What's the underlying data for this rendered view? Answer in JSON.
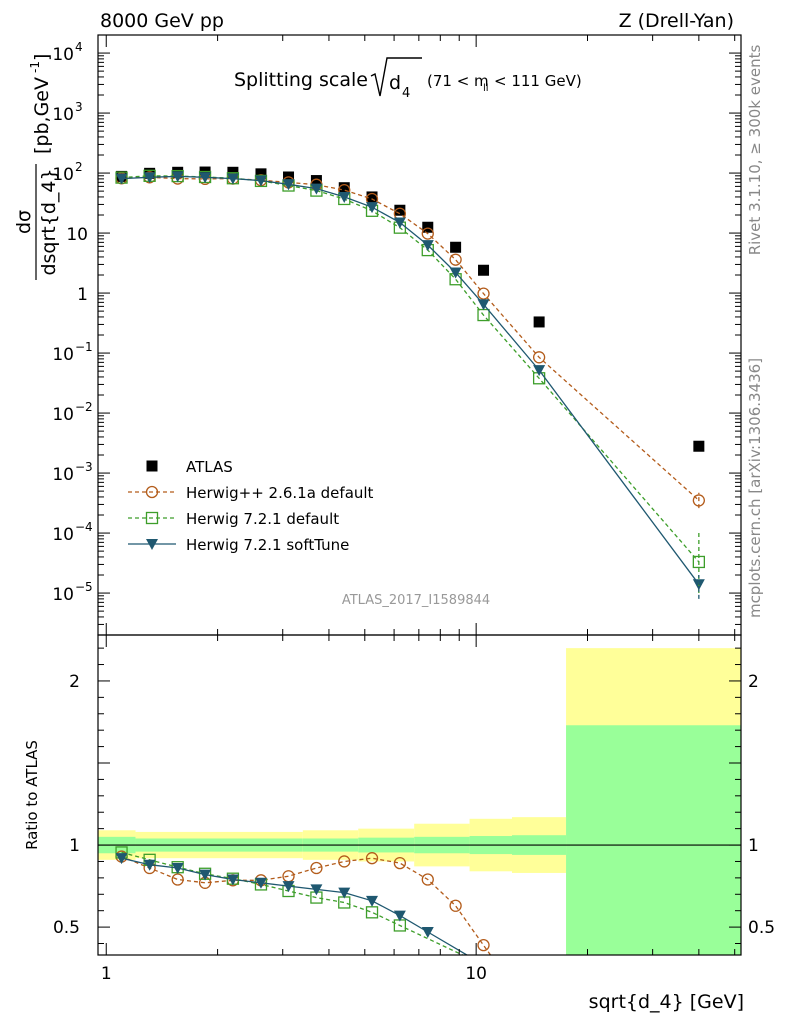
{
  "header": {
    "left": "8000 GeV pp",
    "right": "Z (Drell-Yan)"
  },
  "side_labels": {
    "rivet": "Rivet 3.1.10, ≥ 300k events",
    "mcplots": "mcplots.cern.ch [arXiv:1306.3436]"
  },
  "chart_data": [
    {
      "type": "scatter",
      "title_main": "Splitting scale",
      "title_symbol": "d",
      "title_sub": "4",
      "title_range_pre": "(71 < m",
      "title_range_sub": "ll",
      "title_range_post": " < 111 GeV)",
      "watermark": "ATLAS_2017_I1589844",
      "ylabel_num": "dσ",
      "ylabel_den": "dsqrt{d_4}",
      "ylabel_unit": "[pb,GeV",
      "ylabel_unit_sup": "-1",
      "ylabel_unit_close": "]",
      "xscale": "log",
      "yscale": "log",
      "xlim": [
        0.95,
        52
      ],
      "ylim": [
        2e-06,
        20000
      ],
      "yticks": [
        {
          "value": 1e-05,
          "base": "10",
          "exp": "−5"
        },
        {
          "value": 0.0001,
          "base": "10",
          "exp": "−4"
        },
        {
          "value": 0.001,
          "base": "10",
          "exp": "−3"
        },
        {
          "value": 0.01,
          "base": "10",
          "exp": "−2"
        },
        {
          "value": 0.1,
          "base": "10",
          "exp": "−1"
        },
        {
          "value": 1,
          "base": "1",
          "exp": ""
        },
        {
          "value": 10,
          "base": "10",
          "exp": ""
        },
        {
          "value": 100,
          "base": "10",
          "exp": "2"
        },
        {
          "value": 1000,
          "base": "10",
          "exp": "3"
        },
        {
          "value": 10000,
          "base": "10",
          "exp": "4"
        }
      ],
      "legend_position": "bottom-left",
      "series": [
        {
          "name": "ATLAS",
          "marker": "filled-square",
          "color": "#000000",
          "x": [
            1.1,
            1.31,
            1.56,
            1.85,
            2.2,
            2.62,
            3.11,
            3.7,
            4.4,
            5.23,
            6.22,
            7.4,
            8.8,
            10.47,
            14.8,
            40.0
          ],
          "y": [
            88,
            99,
            103,
            104,
            103,
            97,
            86,
            75,
            57,
            40,
            24,
            12.5,
            5.8,
            2.4,
            0.33,
            0.0028
          ]
        },
        {
          "name": "Herwig++ 2.6.1a default",
          "marker": "open-circle",
          "line": "dashed",
          "color": "#b35c1b",
          "x": [
            1.1,
            1.31,
            1.56,
            1.85,
            2.2,
            2.62,
            3.11,
            3.7,
            4.4,
            5.23,
            6.22,
            7.4,
            8.8,
            10.47,
            14.8,
            40.0
          ],
          "y": [
            82,
            85,
            81,
            80,
            81,
            76,
            70,
            64,
            52,
            37,
            21,
            9.8,
            3.6,
            0.98,
            0.085,
            0.00035
          ]
        },
        {
          "name": "Herwig 7.2.1 default",
          "marker": "open-square",
          "line": "dashed",
          "color": "#3d9e2a",
          "x": [
            1.1,
            1.31,
            1.56,
            1.85,
            2.2,
            2.62,
            3.11,
            3.7,
            4.4,
            5.23,
            6.22,
            7.4,
            8.8,
            10.47,
            14.8,
            40.0
          ],
          "y": [
            84,
            90,
            89,
            86,
            82,
            74,
            62,
            51,
            37,
            23.5,
            12.3,
            5.2,
            1.7,
            0.43,
            0.038,
            3.3e-05
          ]
        },
        {
          "name": "Herwig 7.2.1 softTune",
          "marker": "filled-triangle-down",
          "line": "solid",
          "color": "#1f5870",
          "x": [
            1.1,
            1.31,
            1.56,
            1.85,
            2.2,
            2.62,
            3.11,
            3.7,
            4.4,
            5.23,
            6.22,
            7.4,
            8.8,
            10.47,
            14.8,
            40.0
          ],
          "y": [
            81,
            85,
            88,
            85,
            81,
            75,
            65,
            55,
            40,
            27,
            15,
            6.3,
            2.2,
            0.65,
            0.052,
            1.4e-05
          ]
        }
      ]
    },
    {
      "type": "line",
      "ylabel": "Ratio to ATLAS",
      "xlabel": "sqrt{d_4} [GeV]",
      "xscale": "log",
      "xlim": [
        0.95,
        52
      ],
      "ylim": [
        0.33,
        2.28
      ],
      "xticks": [
        {
          "value": 1,
          "label": "1"
        },
        {
          "value": 10,
          "label": "10"
        }
      ],
      "yticks": [
        {
          "value": 0.5,
          "label": "0.5"
        },
        {
          "value": 1,
          "label": "1"
        },
        {
          "value": 2,
          "label": "2"
        }
      ],
      "bands": [
        {
          "x0": 0.95,
          "x1": 1.2,
          "inner": [
            0.95,
            1.05
          ],
          "outer": [
            0.91,
            1.09
          ]
        },
        {
          "x0": 1.2,
          "x1": 3.4,
          "inner": [
            0.96,
            1.04
          ],
          "outer": [
            0.92,
            1.08
          ]
        },
        {
          "x0": 3.4,
          "x1": 4.8,
          "inner": [
            0.96,
            1.04
          ],
          "outer": [
            0.91,
            1.09
          ]
        },
        {
          "x0": 4.8,
          "x1": 6.8,
          "inner": [
            0.955,
            1.045
          ],
          "outer": [
            0.9,
            1.1
          ]
        },
        {
          "x0": 6.8,
          "x1": 9.6,
          "inner": [
            0.95,
            1.05
          ],
          "outer": [
            0.87,
            1.13
          ]
        },
        {
          "x0": 9.6,
          "x1": 12.5,
          "inner": [
            0.945,
            1.055
          ],
          "outer": [
            0.84,
            1.16
          ]
        },
        {
          "x0": 12.5,
          "x1": 17.5,
          "inner": [
            0.94,
            1.06
          ],
          "outer": [
            0.83,
            1.17
          ]
        },
        {
          "x0": 17.5,
          "x1": 52,
          "inner": [
            0.3,
            1.73
          ],
          "outer": [
            0.3,
            2.2
          ]
        }
      ],
      "series": [
        {
          "name": "Herwig++ 2.6.1a default",
          "color": "#b35c1b",
          "marker": "open-circle",
          "line": "dashed",
          "x": [
            1.1,
            1.31,
            1.56,
            1.85,
            2.2,
            2.62,
            3.11,
            3.7,
            4.4,
            5.23,
            6.22,
            7.4,
            8.8,
            10.47
          ],
          "y": [
            0.93,
            0.86,
            0.79,
            0.77,
            0.785,
            0.785,
            0.81,
            0.86,
            0.9,
            0.92,
            0.89,
            0.79,
            0.63,
            0.39
          ]
        },
        {
          "name": "Herwig 7.2.1 default",
          "color": "#3d9e2a",
          "marker": "open-square",
          "line": "dashed",
          "x": [
            1.1,
            1.31,
            1.56,
            1.85,
            2.2,
            2.62,
            3.11,
            3.7,
            4.4,
            5.23,
            6.22
          ],
          "y": [
            0.955,
            0.91,
            0.865,
            0.825,
            0.795,
            0.76,
            0.72,
            0.68,
            0.65,
            0.59,
            0.51
          ]
        },
        {
          "name": "Herwig 7.2.1 softTune",
          "color": "#1f5870",
          "marker": "filled-triangle-down",
          "line": "solid",
          "x": [
            1.1,
            1.31,
            1.56,
            1.85,
            2.2,
            2.62,
            3.11,
            3.7,
            4.4,
            5.23,
            6.22,
            7.4
          ],
          "y": [
            0.92,
            0.88,
            0.86,
            0.82,
            0.79,
            0.77,
            0.75,
            0.73,
            0.71,
            0.66,
            0.57,
            0.47
          ]
        }
      ]
    }
  ]
}
